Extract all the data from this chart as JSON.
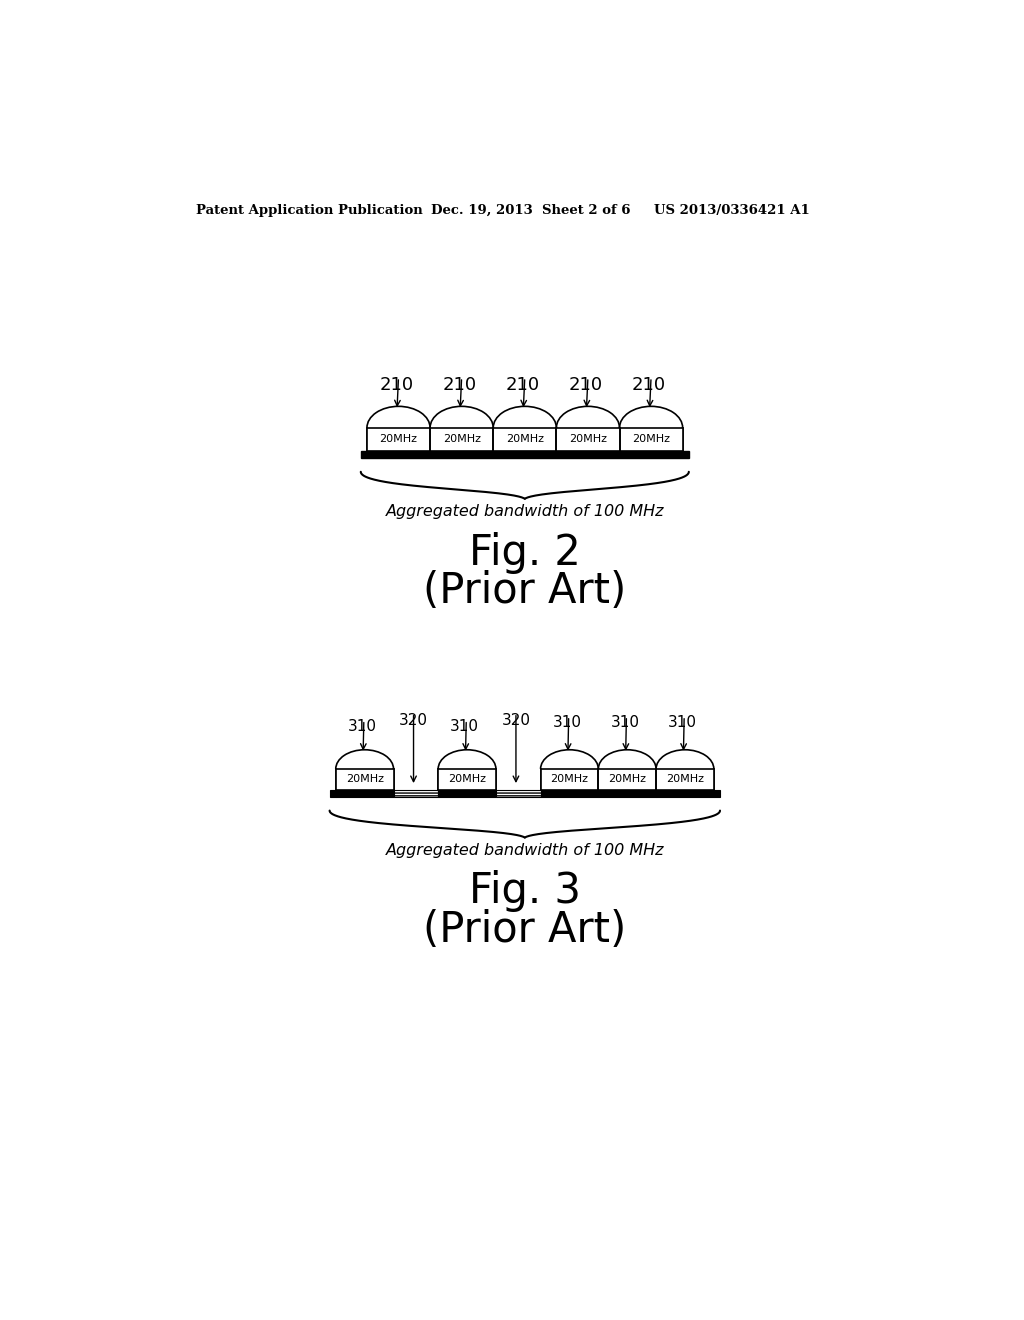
{
  "header_left": "Patent Application Publication",
  "header_mid": "Dec. 19, 2013  Sheet 2 of 6",
  "header_right": "US 2013/0336421 A1",
  "fig2_label": "210",
  "fig2_block_label": "20MHz",
  "fig2_brace_label": "Aggregated bandwidth of 100 MHz",
  "fig2_title": "Fig. 2",
  "fig2_subtitle": "(Prior Art)",
  "fig3_block_label": "310",
  "fig3_gap_label": "320",
  "fig3_block_mhz": "20MHz",
  "fig3_brace_label": "Aggregated bandwidth of 100 MHz",
  "fig3_title": "Fig. 3",
  "fig3_subtitle": "(Prior Art)",
  "bg_color": "#ffffff",
  "line_color": "#000000"
}
